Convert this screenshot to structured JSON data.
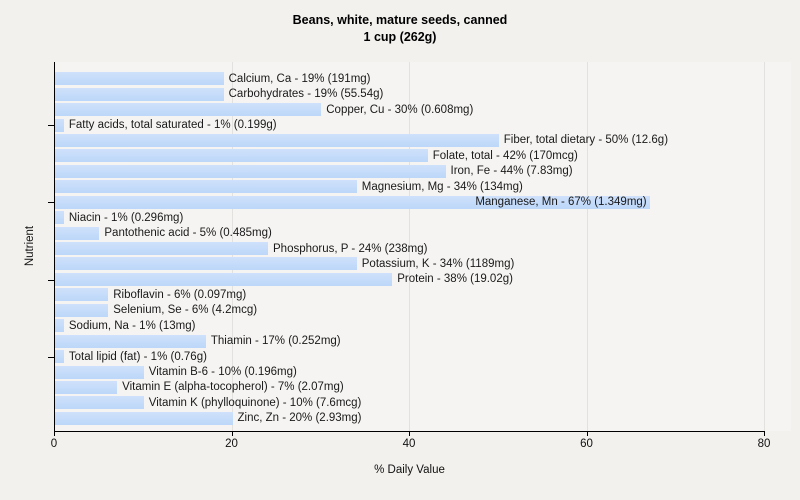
{
  "title": {
    "line1": "Beans, white, mature seeds, canned",
    "line2": "1 cup (262g)"
  },
  "axes": {
    "x_label": "% Daily Value",
    "y_label": "Nutrient",
    "x_ticks": [
      0,
      20,
      40,
      60,
      80
    ],
    "x_max": 80,
    "y_tick_row_indices": [
      3,
      8,
      13,
      18
    ]
  },
  "colors": {
    "bar_fill": "#bcd7f9",
    "bar_fill_top": "#cfe1fb",
    "plot_background": "#f5f4f2",
    "page_background": "#f2f1ee",
    "gridline": "#e2e1de",
    "axis": "#000000"
  },
  "chart_data": {
    "type": "bar",
    "orientation": "horizontal",
    "title": "Beans, white, mature seeds, canned",
    "subtitle": "1 cup (262g)",
    "xlabel": "% Daily Value",
    "ylabel": "Nutrient",
    "xlim": [
      0,
      80
    ],
    "grid": true,
    "legend": false,
    "items": [
      {
        "name": "Calcium, Ca",
        "value": 19,
        "amount": "191mg",
        "label": "Calcium, Ca - 19% (191mg)"
      },
      {
        "name": "Carbohydrates",
        "value": 19,
        "amount": "55.54g",
        "label": "Carbohydrates - 19% (55.54g)"
      },
      {
        "name": "Copper, Cu",
        "value": 30,
        "amount": "0.608mg",
        "label": "Copper, Cu - 30% (0.608mg)"
      },
      {
        "name": "Fatty acids, total saturated",
        "value": 1,
        "amount": "0.199g",
        "label": "Fatty acids, total saturated - 1% (0.199g)"
      },
      {
        "name": "Fiber, total dietary",
        "value": 50,
        "amount": "12.6g",
        "label": "Fiber, total dietary - 50% (12.6g)"
      },
      {
        "name": "Folate, total",
        "value": 42,
        "amount": "170mcg",
        "label": "Folate, total - 42% (170mcg)"
      },
      {
        "name": "Iron, Fe",
        "value": 44,
        "amount": "7.83mg",
        "label": "Iron, Fe - 44% (7.83mg)"
      },
      {
        "name": "Magnesium, Mg",
        "value": 34,
        "amount": "134mg",
        "label": "Magnesium, Mg - 34% (134mg)"
      },
      {
        "name": "Manganese, Mn",
        "value": 67,
        "amount": "1.349mg",
        "label": "Manganese, Mn - 67% (1.349mg)",
        "label_inside": true
      },
      {
        "name": "Niacin",
        "value": 1,
        "amount": "0.296mg",
        "label": "Niacin - 1% (0.296mg)"
      },
      {
        "name": "Pantothenic acid",
        "value": 5,
        "amount": "0.485mg",
        "label": "Pantothenic acid - 5% (0.485mg)"
      },
      {
        "name": "Phosphorus, P",
        "value": 24,
        "amount": "238mg",
        "label": "Phosphorus, P - 24% (238mg)"
      },
      {
        "name": "Potassium, K",
        "value": 34,
        "amount": "1189mg",
        "label": "Potassium, K - 34% (1189mg)"
      },
      {
        "name": "Protein",
        "value": 38,
        "amount": "19.02g",
        "label": "Protein - 38% (19.02g)"
      },
      {
        "name": "Riboflavin",
        "value": 6,
        "amount": "0.097mg",
        "label": "Riboflavin - 6% (0.097mg)"
      },
      {
        "name": "Selenium, Se",
        "value": 6,
        "amount": "4.2mcg",
        "label": "Selenium, Se - 6% (4.2mcg)"
      },
      {
        "name": "Sodium, Na",
        "value": 1,
        "amount": "13mg",
        "label": "Sodium, Na - 1% (13mg)"
      },
      {
        "name": "Thiamin",
        "value": 17,
        "amount": "0.252mg",
        "label": "Thiamin - 17% (0.252mg)"
      },
      {
        "name": "Total lipid (fat)",
        "value": 1,
        "amount": "0.76g",
        "label": "Total lipid (fat) - 1% (0.76g)"
      },
      {
        "name": "Vitamin B-6",
        "value": 10,
        "amount": "0.196mg",
        "label": "Vitamin B-6 - 10% (0.196mg)"
      },
      {
        "name": "Vitamin E (alpha-tocopherol)",
        "value": 7,
        "amount": "2.07mg",
        "label": "Vitamin E (alpha-tocopherol) - 7% (2.07mg)"
      },
      {
        "name": "Vitamin K (phylloquinone)",
        "value": 10,
        "amount": "7.6mcg",
        "label": "Vitamin K (phylloquinone) - 10% (7.6mcg)"
      },
      {
        "name": "Zinc, Zn",
        "value": 20,
        "amount": "2.93mg",
        "label": "Zinc, Zn - 20% (2.93mg)"
      }
    ]
  }
}
